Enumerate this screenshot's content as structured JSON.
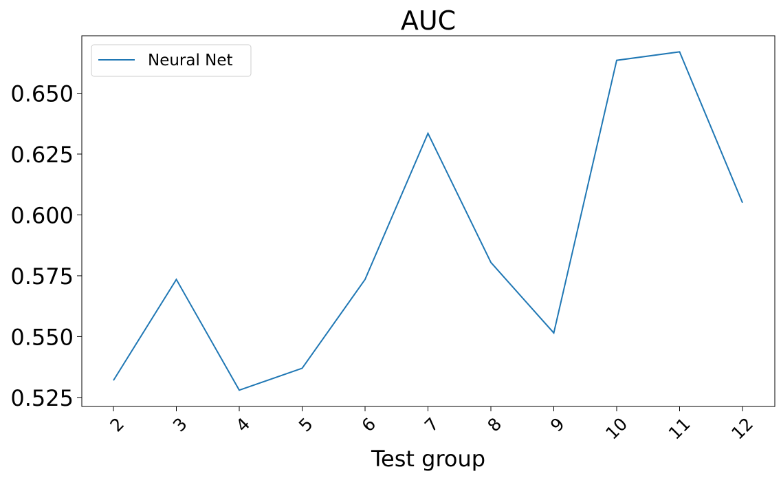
{
  "chart_data": {
    "type": "line",
    "title": "AUC",
    "xlabel": "Test group",
    "ylabel": "",
    "categories": [
      "2",
      "3",
      "4",
      "5",
      "6",
      "7",
      "8",
      "9",
      "10",
      "11",
      "12"
    ],
    "series": [
      {
        "name": "Neural Net",
        "color": "#1f77b4",
        "values": [
          0.532,
          0.5735,
          0.528,
          0.537,
          0.5735,
          0.6335,
          0.5805,
          0.5515,
          0.6635,
          0.667,
          0.605
        ]
      }
    ],
    "yticks": [
      0.525,
      0.55,
      0.575,
      0.6,
      0.625,
      0.65
    ],
    "ytick_labels": [
      "0.525",
      "0.550",
      "0.575",
      "0.600",
      "0.625",
      "0.650"
    ],
    "ylim": [
      0.5213,
      0.6736
    ],
    "grid": false,
    "legend_position": "upper-left"
  }
}
